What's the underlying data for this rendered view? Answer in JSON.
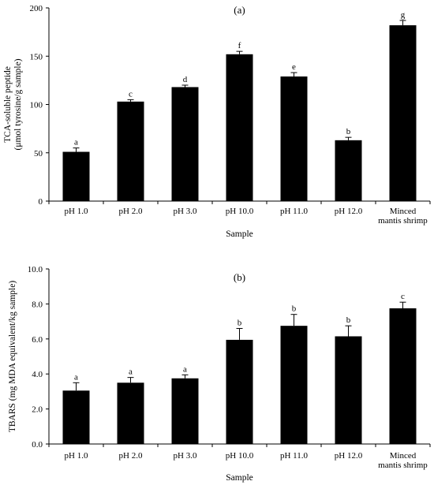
{
  "chart_data": [
    {
      "type": "bar",
      "panel_label": "(a)",
      "categories": [
        "pH 1.0",
        "pH 2.0",
        "pH 3.0",
        "pH 10.0",
        "pH 11.0",
        "pH 12.0",
        "Minced mantis shrimp"
      ],
      "values": [
        51,
        103,
        118,
        152,
        129,
        63,
        182
      ],
      "errors": [
        4,
        2,
        2,
        3,
        4,
        3,
        5
      ],
      "significance": [
        "a",
        "c",
        "d",
        "f",
        "e",
        "b",
        "g"
      ],
      "xlabel": "Sample",
      "ylabel": "TCA-soluble peptide (μmol tyrosine/g sample)",
      "ylabel_lines": [
        "TCA-soluble peptide",
        "(μmol tyrosine/g sample)"
      ],
      "ylim": [
        0,
        200
      ],
      "yticks": [
        "0",
        "50",
        "100",
        "150",
        "200"
      ],
      "grid": false,
      "bar_color": "#000000"
    },
    {
      "type": "bar",
      "panel_label": "(b)",
      "categories": [
        "pH 1.0",
        "pH 2.0",
        "pH 3.0",
        "pH 10.0",
        "pH 11.0",
        "pH 12.0",
        "Minced mantis shrimp"
      ],
      "values": [
        3.05,
        3.5,
        3.75,
        5.95,
        6.75,
        6.15,
        7.75
      ],
      "errors": [
        0.45,
        0.3,
        0.2,
        0.65,
        0.65,
        0.6,
        0.35
      ],
      "significance": [
        "a",
        "a",
        "a",
        "b",
        "b",
        "b",
        "c"
      ],
      "xlabel": "Sample",
      "ylabel": "TBARS (mg MDA equivalent/kg sample)",
      "ylim": [
        0,
        10
      ],
      "yticks": [
        "0.0",
        "2.0",
        "4.0",
        "6.0",
        "8.0",
        "10.0"
      ],
      "grid": false,
      "bar_color": "#000000"
    }
  ]
}
